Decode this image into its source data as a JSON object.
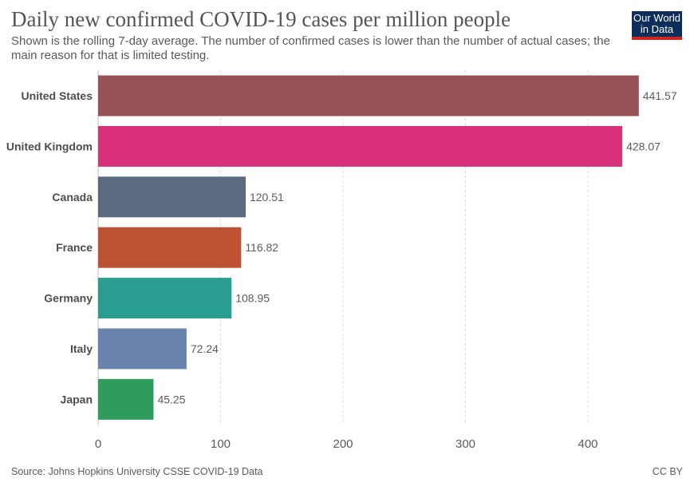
{
  "header": {
    "title": "Daily new confirmed COVID-19 cases per million people",
    "subtitle": "Shown is the rolling 7-day average. The number of confirmed cases is lower than the number of actual cases; the main reason for that is limited testing.",
    "logo_line1": "Our World",
    "logo_line2": "in Data"
  },
  "footer": {
    "source": "Source: Johns Hopkins University CSSE COVID-19 Data",
    "license": "CC BY"
  },
  "chart_data": {
    "type": "bar",
    "orientation": "horizontal",
    "categories": [
      "United States",
      "United Kingdom",
      "Canada",
      "France",
      "Germany",
      "Italy",
      "Japan"
    ],
    "values": [
      441.57,
      428.07,
      120.51,
      116.82,
      108.95,
      72.24,
      45.25
    ],
    "value_labels": [
      "441.57",
      "428.07",
      "120.51",
      "116.82",
      "108.95",
      "72.24",
      "45.25"
    ],
    "colors": [
      "#965257",
      "#d73078",
      "#5b6b7f",
      "#bc5134",
      "#289d90",
      "#6a83ad",
      "#2f9c5d"
    ],
    "xlim": [
      0,
      450
    ],
    "xticks": [
      0,
      100,
      200,
      300,
      400
    ],
    "grid": true,
    "xlabel": "",
    "ylabel": ""
  }
}
